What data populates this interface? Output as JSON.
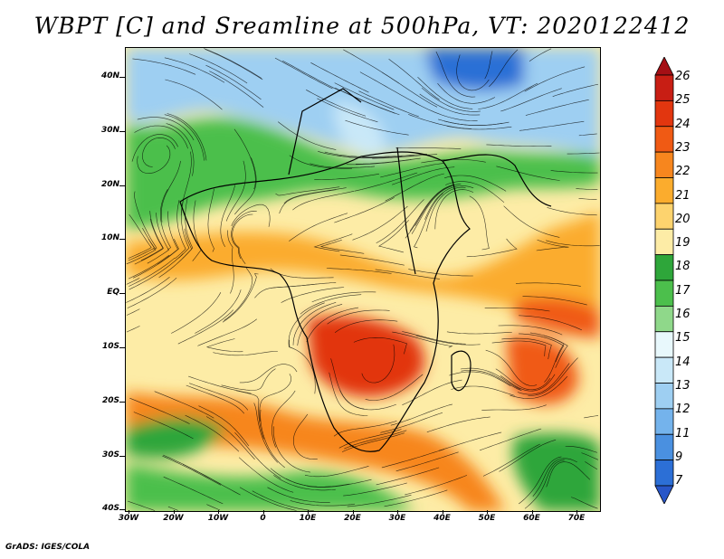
{
  "title": "WBPT [C] and Sreamline at 500hPa, VT: 2020122412",
  "lat_labels": [
    "40N",
    "30N",
    "20N",
    "10N",
    "EQ",
    "10S",
    "20S",
    "30S",
    "40S"
  ],
  "lon_labels": [
    "30W",
    "20W",
    "10W",
    "0",
    "10E",
    "20E",
    "30E",
    "40E",
    "50E",
    "60E",
    "70E"
  ],
  "colorbar": {
    "labels": [
      "26",
      "25",
      "24",
      "23",
      "22",
      "21",
      "20",
      "19",
      "18",
      "17",
      "16",
      "15",
      "14",
      "13",
      "12",
      "11",
      "9",
      "7"
    ],
    "colors": [
      "#a50f15",
      "#c81e14",
      "#e2360f",
      "#f05a14",
      "#f7861e",
      "#fbac2d",
      "#fdd36e",
      "#fdeca6",
      "#2ea63a",
      "#4cbf4c",
      "#8fd88a",
      "#e8f8fc",
      "#c9e8f8",
      "#9ecff2",
      "#74b3ec",
      "#4a90e0",
      "#2c6fd6",
      "#2856c8"
    ]
  },
  "credit": "GrADS: IGES/COLA",
  "map": {
    "land_color": "#000000",
    "palette_bands": [
      {
        "name": "north-blue",
        "color": "#8ec3ee"
      },
      {
        "name": "north-green",
        "color": "#4cbf4c"
      },
      {
        "name": "tropical-yellow",
        "color": "#fdeca6"
      },
      {
        "name": "tropical-orange",
        "color": "#f7861e"
      },
      {
        "name": "hot-red",
        "color": "#e2360f"
      },
      {
        "name": "south-green",
        "color": "#2ea63a"
      }
    ]
  }
}
